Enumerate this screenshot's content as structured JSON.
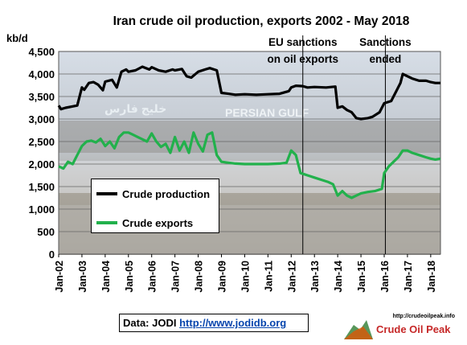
{
  "chart_data": {
    "type": "line",
    "title": "Iran crude oil production, exports 2002 - May 2018",
    "ylabel": "kb/d",
    "ylim": [
      0,
      4500
    ],
    "yticks": [
      "0",
      "500",
      "1,000",
      "1,500",
      "2,000",
      "2,500",
      "3,000",
      "3,500",
      "4,000",
      "4,500"
    ],
    "xticks": [
      "Jan-02",
      "Jan-03",
      "Jan-04",
      "Jan-05",
      "Jan-06",
      "Jan-07",
      "Jan-08",
      "Jan-09",
      "Jan-10",
      "Jan-11",
      "Jan-12",
      "Jan-13",
      "Jan-14",
      "Jan-15",
      "Jan-16",
      "Jan-17",
      "Jan-18"
    ],
    "x_range": [
      2002.0,
      2018.42
    ],
    "grid": true,
    "legend_position": "bottom-left",
    "series": [
      {
        "name": "Crude production",
        "color": "#000000",
        "points": [
          [
            2002.0,
            3300
          ],
          [
            2002.1,
            3220
          ],
          [
            2002.3,
            3250
          ],
          [
            2002.6,
            3280
          ],
          [
            2002.8,
            3300
          ],
          [
            2003.0,
            3700
          ],
          [
            2003.1,
            3650
          ],
          [
            2003.3,
            3800
          ],
          [
            2003.5,
            3820
          ],
          [
            2003.7,
            3760
          ],
          [
            2003.9,
            3640
          ],
          [
            2004.0,
            3830
          ],
          [
            2004.3,
            3870
          ],
          [
            2004.5,
            3700
          ],
          [
            2004.7,
            4050
          ],
          [
            2004.9,
            4100
          ],
          [
            2005.0,
            4050
          ],
          [
            2005.3,
            4080
          ],
          [
            2005.6,
            4160
          ],
          [
            2005.9,
            4100
          ],
          [
            2006.0,
            4150
          ],
          [
            2006.3,
            4080
          ],
          [
            2006.6,
            4050
          ],
          [
            2006.9,
            4100
          ],
          [
            2007.0,
            4080
          ],
          [
            2007.3,
            4110
          ],
          [
            2007.5,
            3950
          ],
          [
            2007.7,
            3920
          ],
          [
            2008.0,
            4050
          ],
          [
            2008.3,
            4100
          ],
          [
            2008.5,
            4130
          ],
          [
            2008.8,
            4080
          ],
          [
            2009.0,
            3580
          ],
          [
            2009.3,
            3560
          ],
          [
            2009.6,
            3540
          ],
          [
            2010.0,
            3550
          ],
          [
            2010.5,
            3540
          ],
          [
            2011.0,
            3550
          ],
          [
            2011.5,
            3560
          ],
          [
            2011.9,
            3620
          ],
          [
            2012.0,
            3700
          ],
          [
            2012.2,
            3740
          ],
          [
            2012.5,
            3730
          ],
          [
            2012.7,
            3700
          ],
          [
            2013.0,
            3710
          ],
          [
            2013.5,
            3700
          ],
          [
            2013.9,
            3720
          ],
          [
            2014.0,
            3250
          ],
          [
            2014.2,
            3280
          ],
          [
            2014.4,
            3200
          ],
          [
            2014.6,
            3150
          ],
          [
            2014.8,
            3020
          ],
          [
            2015.0,
            3000
          ],
          [
            2015.3,
            3020
          ],
          [
            2015.5,
            3050
          ],
          [
            2015.8,
            3150
          ],
          [
            2016.0,
            3350
          ],
          [
            2016.3,
            3400
          ],
          [
            2016.5,
            3600
          ],
          [
            2016.7,
            3800
          ],
          [
            2016.8,
            4000
          ],
          [
            2017.0,
            3950
          ],
          [
            2017.2,
            3900
          ],
          [
            2017.5,
            3850
          ],
          [
            2017.8,
            3850
          ],
          [
            2018.0,
            3820
          ],
          [
            2018.2,
            3800
          ],
          [
            2018.42,
            3800
          ]
        ]
      },
      {
        "name": "Crude exports",
        "color": "#22b14c",
        "points": [
          [
            2002.0,
            1950
          ],
          [
            2002.2,
            1900
          ],
          [
            2002.4,
            2050
          ],
          [
            2002.6,
            2000
          ],
          [
            2002.8,
            2200
          ],
          [
            2003.0,
            2400
          ],
          [
            2003.2,
            2500
          ],
          [
            2003.4,
            2520
          ],
          [
            2003.6,
            2480
          ],
          [
            2003.8,
            2560
          ],
          [
            2004.0,
            2400
          ],
          [
            2004.2,
            2500
          ],
          [
            2004.4,
            2350
          ],
          [
            2004.6,
            2600
          ],
          [
            2004.8,
            2700
          ],
          [
            2005.0,
            2700
          ],
          [
            2005.2,
            2650
          ],
          [
            2005.4,
            2600
          ],
          [
            2005.6,
            2550
          ],
          [
            2005.8,
            2500
          ],
          [
            2006.0,
            2680
          ],
          [
            2006.2,
            2500
          ],
          [
            2006.4,
            2380
          ],
          [
            2006.6,
            2450
          ],
          [
            2006.8,
            2250
          ],
          [
            2007.0,
            2600
          ],
          [
            2007.2,
            2300
          ],
          [
            2007.4,
            2500
          ],
          [
            2007.6,
            2250
          ],
          [
            2007.8,
            2700
          ],
          [
            2008.0,
            2450
          ],
          [
            2008.2,
            2280
          ],
          [
            2008.4,
            2650
          ],
          [
            2008.6,
            2700
          ],
          [
            2008.8,
            2200
          ],
          [
            2009.0,
            2050
          ],
          [
            2009.3,
            2030
          ],
          [
            2009.6,
            2010
          ],
          [
            2010.0,
            2000
          ],
          [
            2010.5,
            2000
          ],
          [
            2011.0,
            2000
          ],
          [
            2011.5,
            2010
          ],
          [
            2011.8,
            2030
          ],
          [
            2012.0,
            2300
          ],
          [
            2012.2,
            2200
          ],
          [
            2012.4,
            1800
          ],
          [
            2012.7,
            1750
          ],
          [
            2013.0,
            1700
          ],
          [
            2013.3,
            1650
          ],
          [
            2013.6,
            1600
          ],
          [
            2013.8,
            1550
          ],
          [
            2014.0,
            1300
          ],
          [
            2014.2,
            1400
          ],
          [
            2014.4,
            1300
          ],
          [
            2014.6,
            1250
          ],
          [
            2014.8,
            1300
          ],
          [
            2015.0,
            1350
          ],
          [
            2015.3,
            1380
          ],
          [
            2015.6,
            1400
          ],
          [
            2015.9,
            1450
          ],
          [
            2016.0,
            1800
          ],
          [
            2016.2,
            1950
          ],
          [
            2016.4,
            2050
          ],
          [
            2016.6,
            2150
          ],
          [
            2016.8,
            2300
          ],
          [
            2017.0,
            2300
          ],
          [
            2017.2,
            2250
          ],
          [
            2017.5,
            2200
          ],
          [
            2017.8,
            2150
          ],
          [
            2018.0,
            2120
          ],
          [
            2018.2,
            2100
          ],
          [
            2018.42,
            2120
          ]
        ]
      }
    ],
    "annotations": [
      {
        "text_lines": [
          "EU sanctions",
          "on oil exports"
        ],
        "x": 2012.5
      },
      {
        "text_lines": [
          "Sanctions",
          "ended"
        ],
        "x": 2016.05
      }
    ]
  },
  "background_photo_text": [
    "خليج فارس",
    "PERSIAN GULF"
  ],
  "source": {
    "label": "Data: JODI",
    "link": "http://www.jodidb.org"
  },
  "logo": {
    "url_text": "http://crudeoilpeak.info",
    "name": "Crude Oil Peak"
  }
}
